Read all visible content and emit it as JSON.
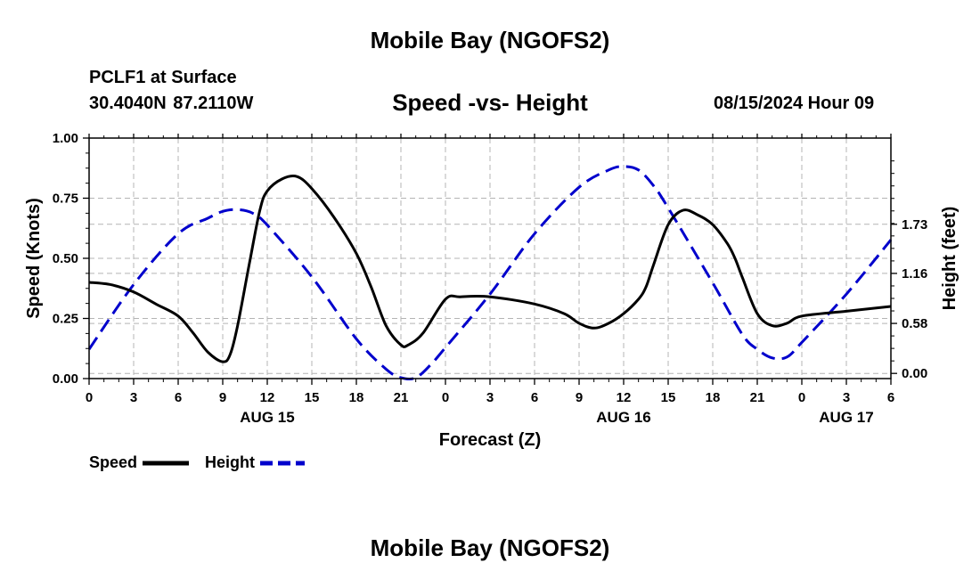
{
  "header": {
    "title": "Mobile Bay (NGOFS2)",
    "station": "PCLF1 at Surface",
    "coords": "30.4040N  87.2110W",
    "subtitle": "Speed -vs- Height",
    "datetime": "08/15/2024 Hour 09"
  },
  "footer": {
    "title": "Mobile Bay (NGOFS2)"
  },
  "chart_data": {
    "type": "line",
    "title": "Speed -vs- Height",
    "xlabel": "Forecast (Z)",
    "ylabel": "Speed (Knots)",
    "y2label": "Height (feet)",
    "xlim": [
      0,
      54
    ],
    "ylim": [
      0,
      1
    ],
    "y2lim": [
      -0.06,
      2.73
    ],
    "x_ticks": [
      0,
      3,
      6,
      9,
      12,
      15,
      18,
      21,
      24,
      27,
      30,
      33,
      36,
      39,
      42,
      45,
      48,
      51,
      54
    ],
    "x_tick_labels": [
      "0",
      "3",
      "6",
      "9",
      "12",
      "15",
      "18",
      "21",
      "0",
      "3",
      "6",
      "9",
      "12",
      "15",
      "18",
      "21",
      "0",
      "3",
      "6"
    ],
    "date_labels": [
      {
        "x": 12,
        "label": "AUG 15"
      },
      {
        "x": 36,
        "label": "AUG 16"
      },
      {
        "x": 51,
        "label": "AUG 17"
      }
    ],
    "y_ticks": [
      0,
      0.25,
      0.5,
      0.75,
      1.0
    ],
    "y_tick_labels": [
      "0.00",
      "0.25",
      "0.50",
      "0.75",
      "1.00"
    ],
    "y2_ticks": [
      0.0,
      0.58,
      1.16,
      1.73
    ],
    "y2_tick_labels": [
      "0.00",
      "0.58",
      "1.16",
      "1.73"
    ],
    "grid": true,
    "legend_position": "bottom-left",
    "series": [
      {
        "name": "Speed",
        "axis": "left",
        "color": "#000000",
        "dash": "solid",
        "x": [
          0,
          1.5,
          3,
          4.5,
          6,
          7,
          8,
          9,
          9.5,
          10,
          10.8,
          11.5,
          12,
          13,
          14,
          15,
          16.5,
          18,
          19,
          20,
          21,
          21.5,
          22.5,
          24,
          25,
          27,
          30,
          32,
          33,
          34,
          35,
          36,
          37,
          37.5,
          38,
          39,
          40,
          41,
          42,
          43,
          43.5,
          44,
          45,
          46,
          47,
          48,
          51,
          54
        ],
        "values": [
          0.4,
          0.39,
          0.36,
          0.31,
          0.26,
          0.19,
          0.11,
          0.07,
          0.1,
          0.22,
          0.48,
          0.7,
          0.78,
          0.83,
          0.84,
          0.79,
          0.67,
          0.52,
          0.38,
          0.22,
          0.14,
          0.14,
          0.19,
          0.33,
          0.34,
          0.34,
          0.31,
          0.27,
          0.23,
          0.21,
          0.23,
          0.27,
          0.33,
          0.38,
          0.47,
          0.64,
          0.7,
          0.68,
          0.64,
          0.56,
          0.5,
          0.42,
          0.27,
          0.22,
          0.23,
          0.26,
          0.28,
          0.3
        ]
      },
      {
        "name": "Height",
        "axis": "right",
        "color": "#0000cc",
        "dash": "dashed",
        "x": [
          0,
          3,
          6,
          8,
          9,
          10,
          11,
          12,
          15,
          18,
          20,
          21,
          22,
          23,
          24,
          27,
          30,
          33,
          35,
          36,
          37,
          38,
          39,
          42,
          44,
          45,
          46,
          47,
          48,
          51,
          54
        ],
        "values": [
          0.28,
          1.03,
          1.62,
          1.8,
          1.88,
          1.9,
          1.86,
          1.72,
          1.12,
          0.4,
          0.05,
          -0.05,
          -0.05,
          0.1,
          0.3,
          0.92,
          1.62,
          2.16,
          2.36,
          2.4,
          2.36,
          2.18,
          1.92,
          1.05,
          0.45,
          0.28,
          0.18,
          0.19,
          0.36,
          0.92,
          1.55
        ]
      }
    ]
  }
}
